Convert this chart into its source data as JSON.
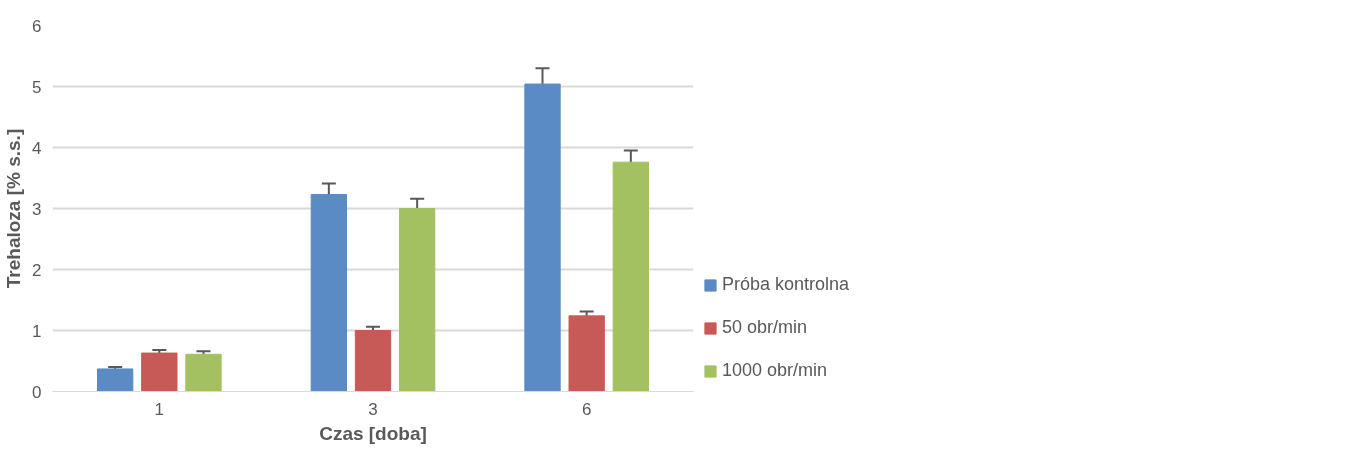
{
  "chart_data": {
    "type": "bar",
    "xlabel": "Czas [doba]",
    "ylabel": "Trehaloza [% s.s.]",
    "categories": [
      "1",
      "3",
      "6"
    ],
    "series": [
      {
        "name": "Próba kontrolna",
        "color": "#5b8bc5",
        "values": [
          0.37,
          3.23,
          5.04
        ],
        "errors": [
          0.03,
          0.18,
          0.26
        ]
      },
      {
        "name": "50 obr/min",
        "color": "#c75a56",
        "values": [
          0.63,
          1.0,
          1.24
        ],
        "errors": [
          0.05,
          0.06,
          0.07
        ]
      },
      {
        "name": "1000 obr/min",
        "color": "#a4c162",
        "values": [
          0.61,
          3.0,
          3.76
        ],
        "errors": [
          0.05,
          0.16,
          0.19
        ]
      }
    ],
    "ylim": [
      0,
      6
    ],
    "yticks": [
      0,
      1,
      2,
      3,
      4,
      5,
      6
    ],
    "grid": "y",
    "legend": "bottom right"
  }
}
